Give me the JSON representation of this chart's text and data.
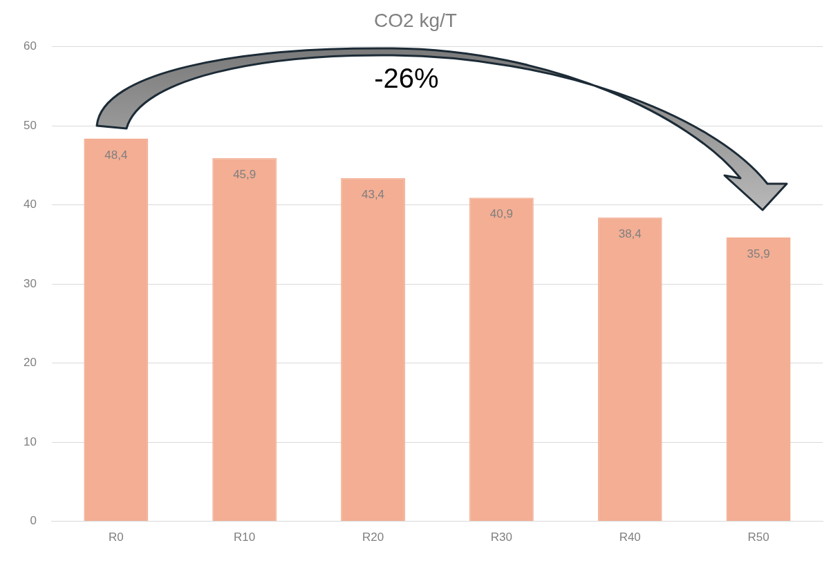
{
  "chart_data": {
    "type": "bar",
    "title": "CO2 kg/T",
    "categories": [
      "R0",
      "R10",
      "R20",
      "R30",
      "R40",
      "R50"
    ],
    "values": [
      48.4,
      45.9,
      43.4,
      40.9,
      38.4,
      35.9
    ],
    "value_labels": [
      "48,4",
      "45,9",
      "43,4",
      "40,9",
      "38,4",
      "35,9"
    ],
    "color": "#f3ae94",
    "ylim": [
      0,
      60
    ],
    "yticks": [
      0,
      10,
      20,
      30,
      40,
      50,
      60
    ],
    "grid": "y",
    "legend": false,
    "annotations": [
      "-26%"
    ]
  }
}
